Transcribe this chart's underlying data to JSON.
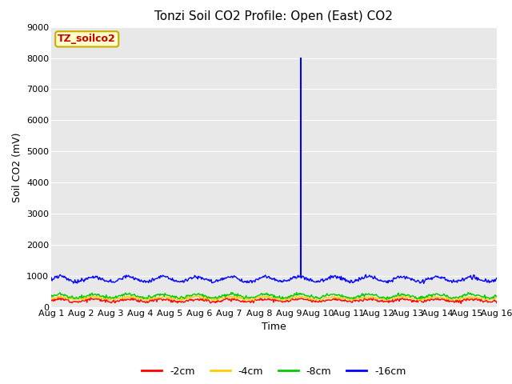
{
  "title": "Tonzi Soil CO2 Profile: Open (East) CO2",
  "ylabel": "Soil CO2 (mV)",
  "xlabel": "Time",
  "ylim": [
    0,
    9000
  ],
  "yticks": [
    0,
    1000,
    2000,
    3000,
    4000,
    5000,
    6000,
    7000,
    8000,
    9000
  ],
  "xtick_labels": [
    "Aug 1",
    "Aug 2",
    "Aug 3",
    "Aug 4",
    "Aug 5",
    "Aug 6",
    "Aug 7",
    "Aug 8",
    "Aug 9",
    "Aug 10",
    "Aug 11",
    "Aug 12",
    "Aug 13",
    "Aug 14",
    "Aug 15",
    "Aug 16"
  ],
  "figure_bg_color": "#ffffff",
  "plot_bg_color": "#e8e8e8",
  "grid_color": "#ffffff",
  "spike_day": 9.4,
  "spike_value": 8000,
  "legend_label_box": "TZ_soilco2",
  "legend_box_facecolor": "#ffffcc",
  "legend_box_edgecolor": "#ccaa00",
  "legend_box_textcolor": "#cc0000",
  "series": [
    {
      "label": "-2cm",
      "color": "#ff0000",
      "base": 220,
      "amp": 40,
      "noise": 25,
      "freq": 13
    },
    {
      "label": "-4cm",
      "color": "#ffcc00",
      "base": 290,
      "amp": 40,
      "noise": 20,
      "freq": 13
    },
    {
      "label": "-8cm",
      "color": "#00cc00",
      "base": 360,
      "amp": 60,
      "noise": 25,
      "freq": 13
    },
    {
      "label": "-16cm",
      "color": "#0000ff",
      "base": 900,
      "amp": 80,
      "noise": 30,
      "freq": 13
    }
  ],
  "title_fontsize": 11,
  "axis_label_fontsize": 9,
  "tick_fontsize": 8,
  "legend_fontsize": 9
}
